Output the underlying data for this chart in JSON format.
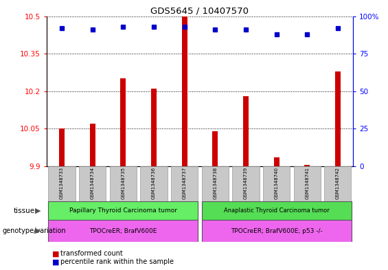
{
  "title": "GDS5645 / 10407570",
  "samples": [
    "GSM1348733",
    "GSM1348734",
    "GSM1348735",
    "GSM1348736",
    "GSM1348737",
    "GSM1348738",
    "GSM1348739",
    "GSM1348740",
    "GSM1348741",
    "GSM1348742"
  ],
  "transformed_count": [
    10.05,
    10.07,
    10.25,
    10.21,
    10.5,
    10.04,
    10.18,
    9.935,
    9.905,
    10.28
  ],
  "percentile_rank": [
    92,
    91,
    93,
    93,
    93,
    91,
    91,
    88,
    88,
    92
  ],
  "ylim_left": [
    9.9,
    10.5
  ],
  "ylim_right": [
    0,
    100
  ],
  "yticks_left": [
    9.9,
    10.05,
    10.2,
    10.35,
    10.5
  ],
  "yticks_right": [
    0,
    25,
    50,
    75,
    100
  ],
  "ytick_labels_left": [
    "9.9",
    "10.05",
    "10.2",
    "10.35",
    "10.5"
  ],
  "ytick_labels_right": [
    "0",
    "25",
    "50",
    "75",
    "100%"
  ],
  "tissue_labels": [
    "Papillary Thyroid Carcinoma tumor",
    "Anaplastic Thyroid Carcinoma tumor"
  ],
  "tissue_color": "#66EE66",
  "tissue_color2": "#55DD55",
  "genotype_labels": [
    "TPOCreER; BrafV600E",
    "TPOCreER; BrafV600E; p53 -/-"
  ],
  "genotype_color": "#EE66EE",
  "bar_color": "#CC0000",
  "dot_color": "#0000CC",
  "xticklabel_bg": "#C8C8C8",
  "bar_width": 0.18
}
